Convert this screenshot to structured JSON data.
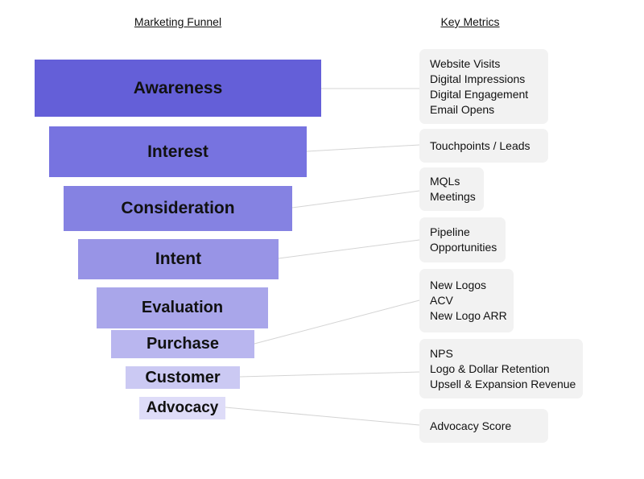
{
  "headers": {
    "funnel": "Marketing Funnel",
    "metrics": "Key Metrics"
  },
  "stages": [
    {
      "label": "Awareness",
      "color": "#645FD8",
      "metrics": [
        "Website Visits",
        "Digital Impressions",
        "Digital Engagement",
        "Email Opens"
      ]
    },
    {
      "label": "Interest",
      "color": "#7773E0",
      "metrics": [
        "Touchpoints / Leads"
      ]
    },
    {
      "label": "Consideration",
      "color": "#8582E2",
      "metrics": [
        "MQLs",
        "Meetings"
      ]
    },
    {
      "label": "Intent",
      "color": "#9894E6",
      "metrics": [
        "Pipeline",
        "Opportunities"
      ]
    },
    {
      "label": "Evaluation",
      "color": "#A9A6EA",
      "metrics": []
    },
    {
      "label": "Purchase",
      "color": "#B9B6EF",
      "metrics": [
        "New Logos",
        "ACV",
        "New Logo ARR"
      ]
    },
    {
      "label": "Customer",
      "color": "#CBC9F3",
      "metrics": [
        "NPS",
        "Logo & Dollar Retention",
        "Upsell & Expansion Revenue"
      ]
    },
    {
      "label": "Advocacy",
      "color": "#DEDCF8",
      "metrics": [
        "Advocacy Score"
      ]
    }
  ]
}
